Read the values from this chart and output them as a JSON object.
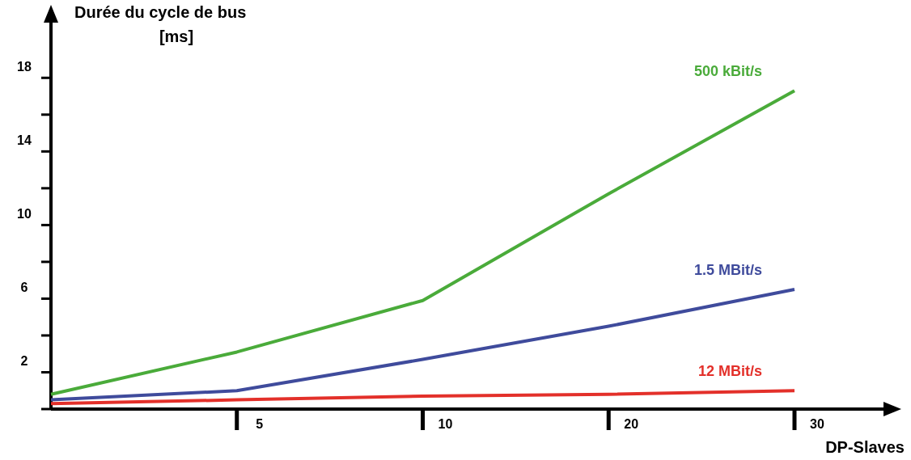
{
  "chart_data": {
    "type": "line",
    "ylabel": "Durée du cycle de bus\n[ms]",
    "xlabel": "DP-Slaves",
    "categories": [
      null,
      "5",
      "10",
      "20",
      "30"
    ],
    "series": [
      {
        "name": "500 kBit/s",
        "color": "#4aab3a",
        "values": [
          0.8,
          3.1,
          5.9,
          11.7,
          17.3
        ]
      },
      {
        "name": "1.5 MBit/s",
        "color": "#3f4b9c",
        "values": [
          0.5,
          1.0,
          2.7,
          4.5,
          6.5
        ]
      },
      {
        "name": "12 MBit/s",
        "color": "#e3302a",
        "values": [
          0.3,
          0.5,
          0.7,
          0.8,
          1.0
        ]
      }
    ],
    "ylim": [
      0,
      21
    ],
    "yticks": [
      {
        "value": 0,
        "label": null
      },
      2,
      {
        "value": 4,
        "label": null
      },
      6,
      {
        "value": 8,
        "label": null
      },
      10,
      {
        "value": 12,
        "label": null
      },
      14,
      {
        "value": 16,
        "label": null
      },
      18
    ],
    "grid": false,
    "marker": "none",
    "line_style": "solid"
  }
}
